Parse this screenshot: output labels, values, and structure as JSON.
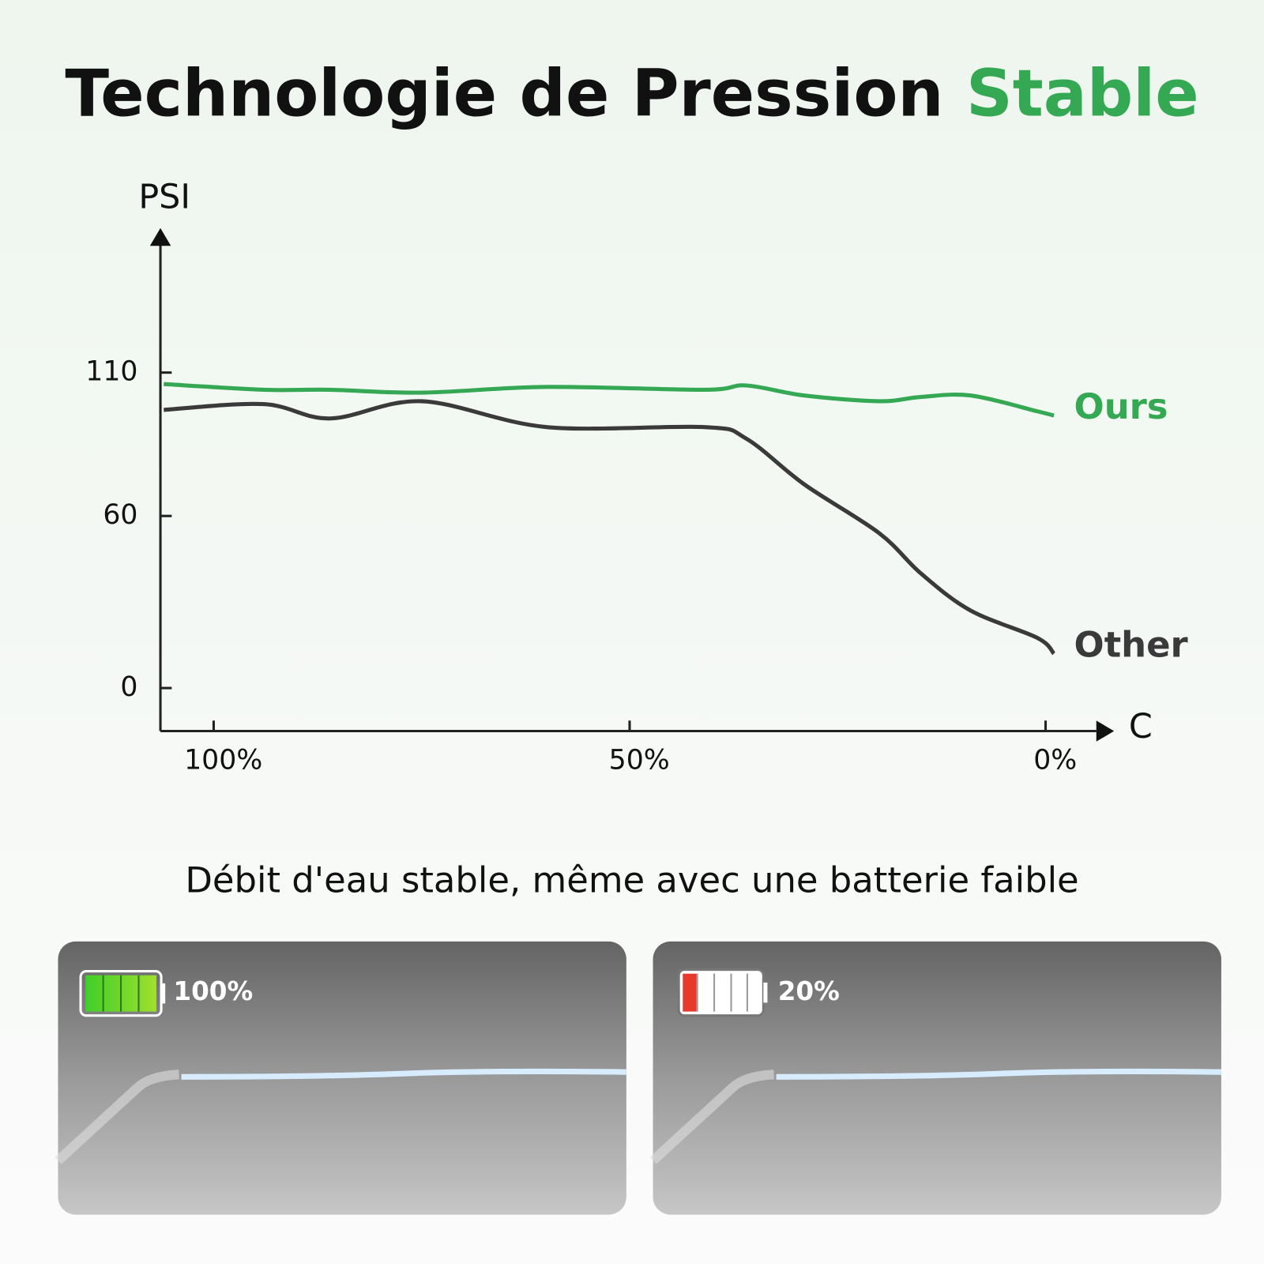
{
  "title": "Technologie de Pression",
  "title_highlight": "Stable",
  "chart_data": {
    "type": "line",
    "y_label": "PSI",
    "x_label": "C",
    "x": [
      106,
      94,
      86,
      75,
      60,
      41,
      36,
      29,
      20,
      15,
      9,
      1,
      -1
    ],
    "xlim": [
      106.4,
      -6.1
    ],
    "xticks": [
      {
        "value": 100,
        "label": "100%"
      },
      {
        "value": 50,
        "label": "50%"
      },
      {
        "value": 0,
        "label": "0%"
      }
    ],
    "ylim": [
      -15,
      157
    ],
    "yticks": [
      0,
      60,
      110
    ],
    "series": [
      {
        "name": "Ours",
        "color": "#34a853",
        "values": [
          106,
          104,
          104,
          103,
          105,
          104,
          105.5,
          102,
          100,
          101.5,
          102,
          96.5,
          95
        ]
      },
      {
        "name": "Other",
        "color": "#3a3a3a",
        "values": [
          97,
          99,
          94,
          100,
          91,
          91,
          87,
          71,
          54,
          40,
          27,
          17.5,
          12
        ]
      }
    ]
  },
  "subtitle": "Débit d'eau stable, même avec une batterie faible",
  "panels": [
    {
      "battery_label": "100%"
    },
    {
      "battery_label": "20%"
    }
  ]
}
